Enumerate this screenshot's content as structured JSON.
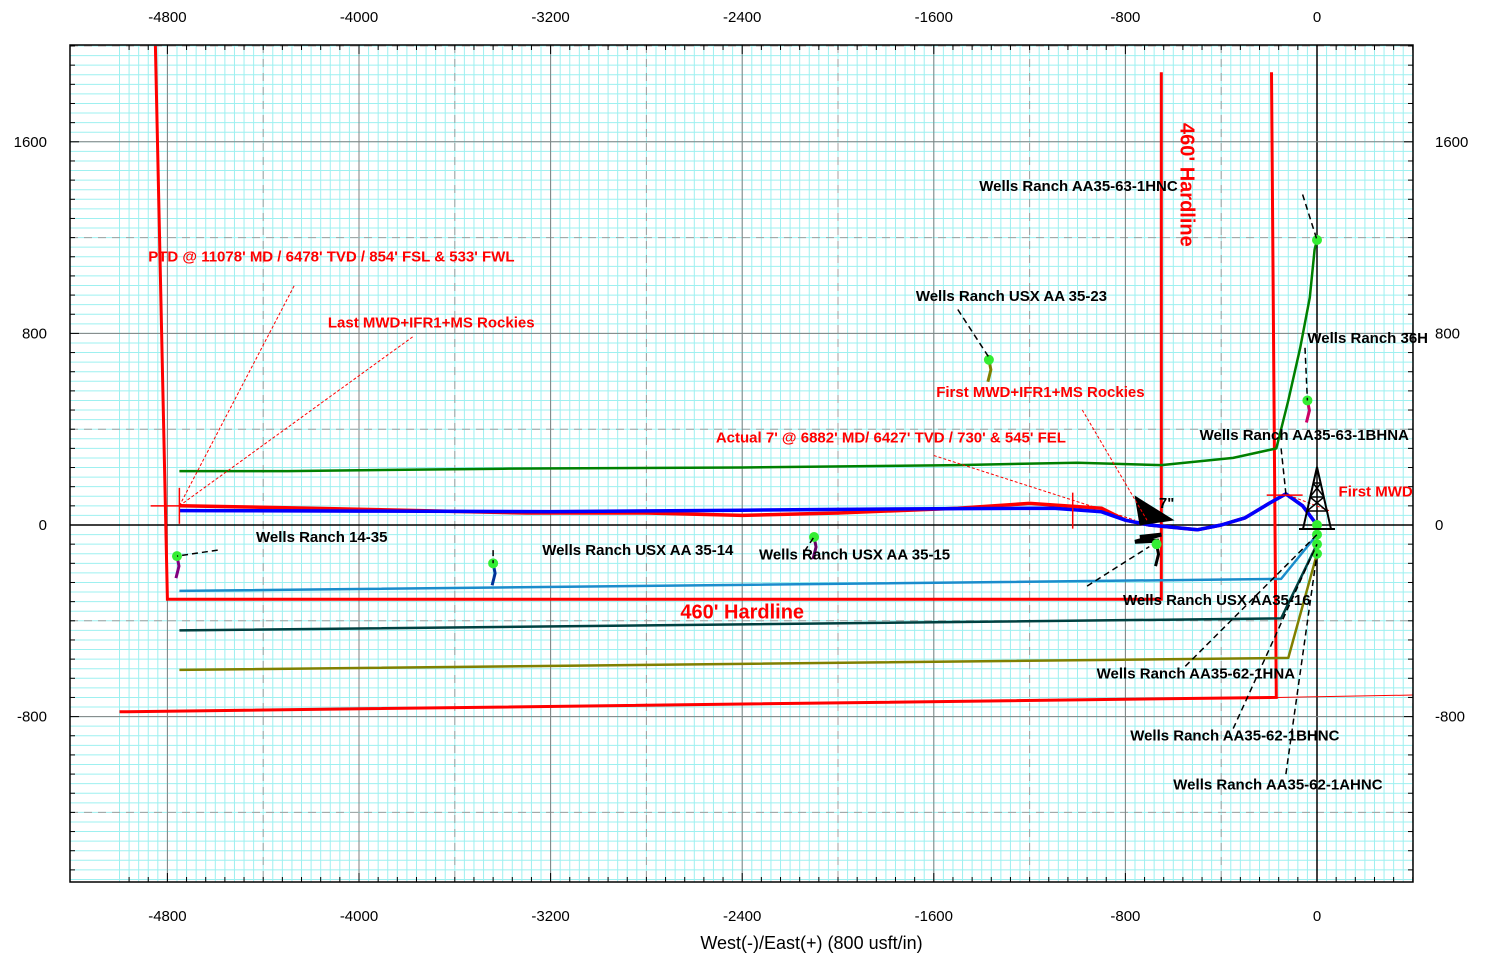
{
  "chart_data": {
    "type": "line",
    "title": "",
    "xlabel": "West(-)/East(+) (800 usft/in)",
    "ylabel": "",
    "xlim": [
      -5000,
      400
    ],
    "ylim": [
      -1500,
      2000
    ],
    "x_ticks": [
      -4800,
      -4000,
      -3200,
      -2400,
      -1600,
      -800,
      0
    ],
    "x_tick_labels": [
      "-4800",
      "-4000",
      "-3200",
      "-2400",
      "-1600",
      "-800",
      "0"
    ],
    "y_ticks": [
      1600,
      800,
      0,
      -800
    ],
    "y_tick_labels": [
      "1600",
      "800",
      "0",
      "-800"
    ],
    "grid": true,
    "colors": {
      "minor_grid": "#9ef0f0",
      "major_grid": "#808080",
      "hardline": "#ff0000",
      "plan": "#0000ff",
      "actual": "#ff0000",
      "offset_green": "#008000",
      "offset_blue": "#1a8ccc",
      "offset_darkteal": "#004040",
      "offset_olive": "#808000",
      "survey_point": "#33ee33"
    },
    "hardlines": [
      {
        "name": "lease-outline",
        "points": [
          [
            -4850,
            2000
          ],
          [
            -4800,
            -310
          ],
          [
            -650,
            -310
          ],
          [
            -650,
            1890
          ]
        ]
      },
      {
        "name": "section-line",
        "points": [
          [
            -5000,
            -780
          ],
          [
            -170,
            -720
          ],
          [
            -190,
            1890
          ]
        ]
      }
    ],
    "hardline_labels": [
      {
        "text": "460' Hardline",
        "x": -2400,
        "y": -390,
        "rotate": 0
      },
      {
        "text": "460' Hardline",
        "x": -570,
        "y": 1420,
        "rotate": 90
      }
    ],
    "series": [
      {
        "name": "Wells Ranch AA35-63-1HNC",
        "color": "#008000",
        "points": [
          [
            -4750,
            225
          ],
          [
            -4300,
            225
          ],
          [
            -3400,
            235
          ],
          [
            -2400,
            240
          ],
          [
            -1500,
            250
          ],
          [
            -1000,
            260
          ],
          [
            -650,
            250
          ],
          [
            -350,
            280
          ],
          [
            -170,
            320
          ],
          [
            -120,
            520
          ],
          [
            -70,
            740
          ],
          [
            -30,
            950
          ],
          [
            -10,
            1150
          ],
          [
            0,
            1190
          ]
        ]
      },
      {
        "name": "Wells Ranch AA35-63-1BHNA (actual)",
        "color": "#ff0000",
        "points": [
          [
            -4750,
            80
          ],
          [
            -4200,
            70
          ],
          [
            -3300,
            50
          ],
          [
            -2800,
            50
          ],
          [
            -2400,
            40
          ],
          [
            -2000,
            50
          ],
          [
            -1500,
            70
          ],
          [
            -1200,
            90
          ],
          [
            -900,
            70
          ],
          [
            -800,
            20
          ],
          [
            -700,
            0
          ],
          [
            -600,
            -10
          ],
          [
            -500,
            -20
          ],
          [
            -400,
            0
          ],
          [
            -300,
            30
          ],
          [
            -200,
            90
          ],
          [
            -130,
            130
          ],
          [
            -60,
            80
          ],
          [
            0,
            0
          ]
        ]
      },
      {
        "name": "Wells Ranch AA35-63-1BHNA (plan)",
        "color": "#0000ff",
        "points": [
          [
            -4750,
            60
          ],
          [
            -4000,
            58
          ],
          [
            -3200,
            56
          ],
          [
            -2400,
            62
          ],
          [
            -1600,
            68
          ],
          [
            -1100,
            70
          ],
          [
            -900,
            55
          ],
          [
            -800,
            20
          ],
          [
            -700,
            0
          ],
          [
            -600,
            -10
          ],
          [
            -500,
            -20
          ],
          [
            -400,
            0
          ],
          [
            -300,
            30
          ],
          [
            -200,
            90
          ],
          [
            -130,
            130
          ],
          [
            -60,
            80
          ],
          [
            0,
            0
          ]
        ]
      },
      {
        "name": "Wells Ranch AA35-62-1HNA",
        "color": "#1a8ccc",
        "points": [
          [
            -4750,
            -275
          ],
          [
            -2400,
            -250
          ],
          [
            -150,
            -225
          ],
          [
            0,
            -40
          ]
        ]
      },
      {
        "name": "Wells Ranch AA35-62-1BHNC",
        "color": "#004040",
        "points": [
          [
            -4750,
            -440
          ],
          [
            -2400,
            -415
          ],
          [
            -150,
            -390
          ],
          [
            0,
            -80
          ]
        ]
      },
      {
        "name": "Wells Ranch AA35-62-1AHNC",
        "color": "#808000",
        "points": [
          [
            -4750,
            -605
          ],
          [
            -2400,
            -580
          ],
          [
            -120,
            -555
          ],
          [
            0,
            -120
          ]
        ]
      }
    ],
    "offset_wells": [
      {
        "name": "Wells Ranch USX AA 35-23",
        "x": -1370,
        "y": 690,
        "color": "#808000"
      },
      {
        "name": "Wells Ranch 36H",
        "x": -40,
        "y": 520,
        "color": "#cc0066"
      },
      {
        "name": "Wells Ranch 14-35",
        "x": -4760,
        "y": -130,
        "color": "#800080"
      },
      {
        "name": "Wells Ranch USX AA 35-14",
        "x": -3440,
        "y": -160,
        "color": "#003399"
      },
      {
        "name": "Wells Ranch USX AA 35-15",
        "x": -2100,
        "y": -50,
        "color": "#660066"
      },
      {
        "name": "Wells Ranch USX AA35-16",
        "x": -670,
        "y": -80,
        "color": "#000000"
      }
    ],
    "annotations": [
      {
        "text": "PTD @ 11078' MD / 6478' TVD / 854' FSL & 533' FWL",
        "color": "red",
        "x": -4880,
        "y": 1100
      },
      {
        "text": "Last MWD+IFR1+MS Rockies",
        "color": "red",
        "x": -4130,
        "y": 825
      },
      {
        "text": "First MWD+IFR1+MS Rockies",
        "color": "red",
        "x": -1590,
        "y": 535
      },
      {
        "text": "Actual 7' @ 6882' MD/ 6427' TVD / 730' & 545' FEL",
        "color": "red",
        "x": -2510,
        "y": 345
      },
      {
        "text": "First MWD",
        "color": "red",
        "x": 90,
        "y": 120
      },
      {
        "text": "7\"",
        "color": "black",
        "x": -660,
        "y": 70
      },
      {
        "text": "Wells Ranch AA35-63-1HNC",
        "color": "black",
        "x": -1410,
        "y": 1395
      },
      {
        "text": "Wells Ranch USX AA 35-23",
        "color": "black",
        "x": -1675,
        "y": 935
      },
      {
        "text": "Wells Ranch 36H",
        "color": "black",
        "x": -40,
        "y": 760
      },
      {
        "text": "Wells Ranch AA35-63-1BHNA",
        "color": "black",
        "x": -490,
        "y": 355
      },
      {
        "text": "Wells Ranch 14-35",
        "color": "black",
        "x": -4430,
        "y": -70
      },
      {
        "text": "Wells Ranch USX AA 35-14",
        "color": "black",
        "x": -3235,
        "y": -125
      },
      {
        "text": "Wells Ranch USX AA 35-15",
        "color": "black",
        "x": -2330,
        "y": -145
      },
      {
        "text": "Wells Ranch USX AA35-16",
        "color": "black",
        "x": -810,
        "y": -335
      },
      {
        "text": "Wells Ranch AA35-62-1HNA",
        "color": "black",
        "x": -920,
        "y": -640
      },
      {
        "text": "Wells Ranch AA35-62-1BHNC",
        "color": "black",
        "x": -780,
        "y": -900
      },
      {
        "text": "Wells Ranch AA35-62-1AHNC",
        "color": "black",
        "x": -600,
        "y": -1105
      }
    ]
  }
}
